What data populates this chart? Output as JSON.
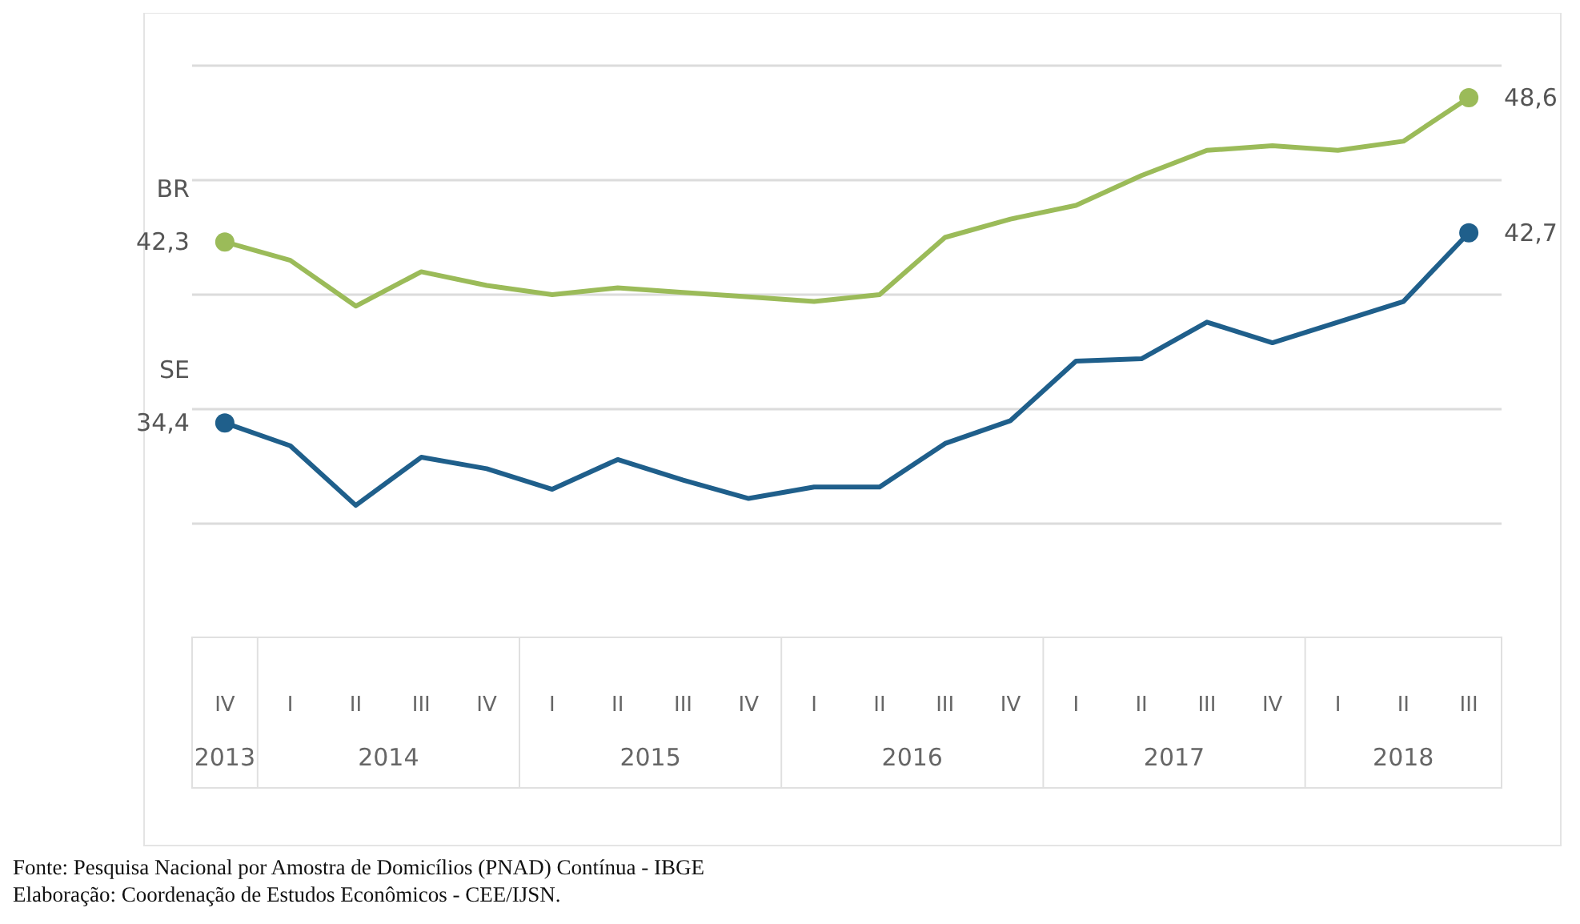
{
  "chart_data": {
    "type": "line",
    "categories": [
      "IV",
      "I",
      "II",
      "III",
      "IV",
      "I",
      "II",
      "III",
      "IV",
      "I",
      "II",
      "III",
      "IV",
      "I",
      "II",
      "III",
      "IV",
      "I",
      "II",
      "III"
    ],
    "yticks": [
      {
        "value": 30,
        "label": null
      },
      {
        "value": 35,
        "label": null
      },
      {
        "value": 40,
        "label": null
      },
      {
        "value": 45,
        "label": null
      },
      {
        "value": 50,
        "label": null
      }
    ],
    "grid": "y",
    "tick_labels": "x",
    "marker": "none",
    "line_style": "solid",
    "legend": false,
    "series": [
      {
        "name": "BR",
        "color": "#9bbb59",
        "values": [
          42.3,
          41.5,
          39.5,
          41.0,
          40.4,
          40.0,
          40.3,
          40.1,
          39.9,
          39.7,
          40.0,
          42.5,
          43.3,
          43.9,
          45.2,
          46.3,
          46.5,
          46.3,
          46.7,
          48.6
        ],
        "value_labels": [
          "42,3",
          null,
          null,
          null,
          null,
          null,
          null,
          null,
          null,
          null,
          null,
          null,
          null,
          null,
          null,
          null,
          null,
          null,
          null,
          "48,6"
        ]
      },
      {
        "name": "SE",
        "color": "#1f5f8b",
        "values": [
          34.4,
          33.4,
          30.8,
          32.9,
          32.4,
          31.5,
          32.8,
          31.9,
          31.1,
          31.6,
          31.6,
          33.5,
          34.5,
          37.1,
          37.2,
          38.8,
          37.9,
          38.8,
          39.7,
          42.7
        ],
        "value_labels": [
          "34,4",
          null,
          null,
          null,
          null,
          null,
          null,
          null,
          null,
          null,
          null,
          null,
          null,
          null,
          null,
          null,
          null,
          null,
          null,
          "42,7"
        ]
      }
    ],
    "annotations": [
      "2013",
      "2014",
      "2015",
      "2016",
      "2017",
      "2018",
      "Fonte: Pesquisa Nacional por Amostra de Domicílios (PNAD) Contínua - IBGE",
      "Elaboração: Coordenação de Estudos Econômicos - CEE/IJSN."
    ]
  }
}
